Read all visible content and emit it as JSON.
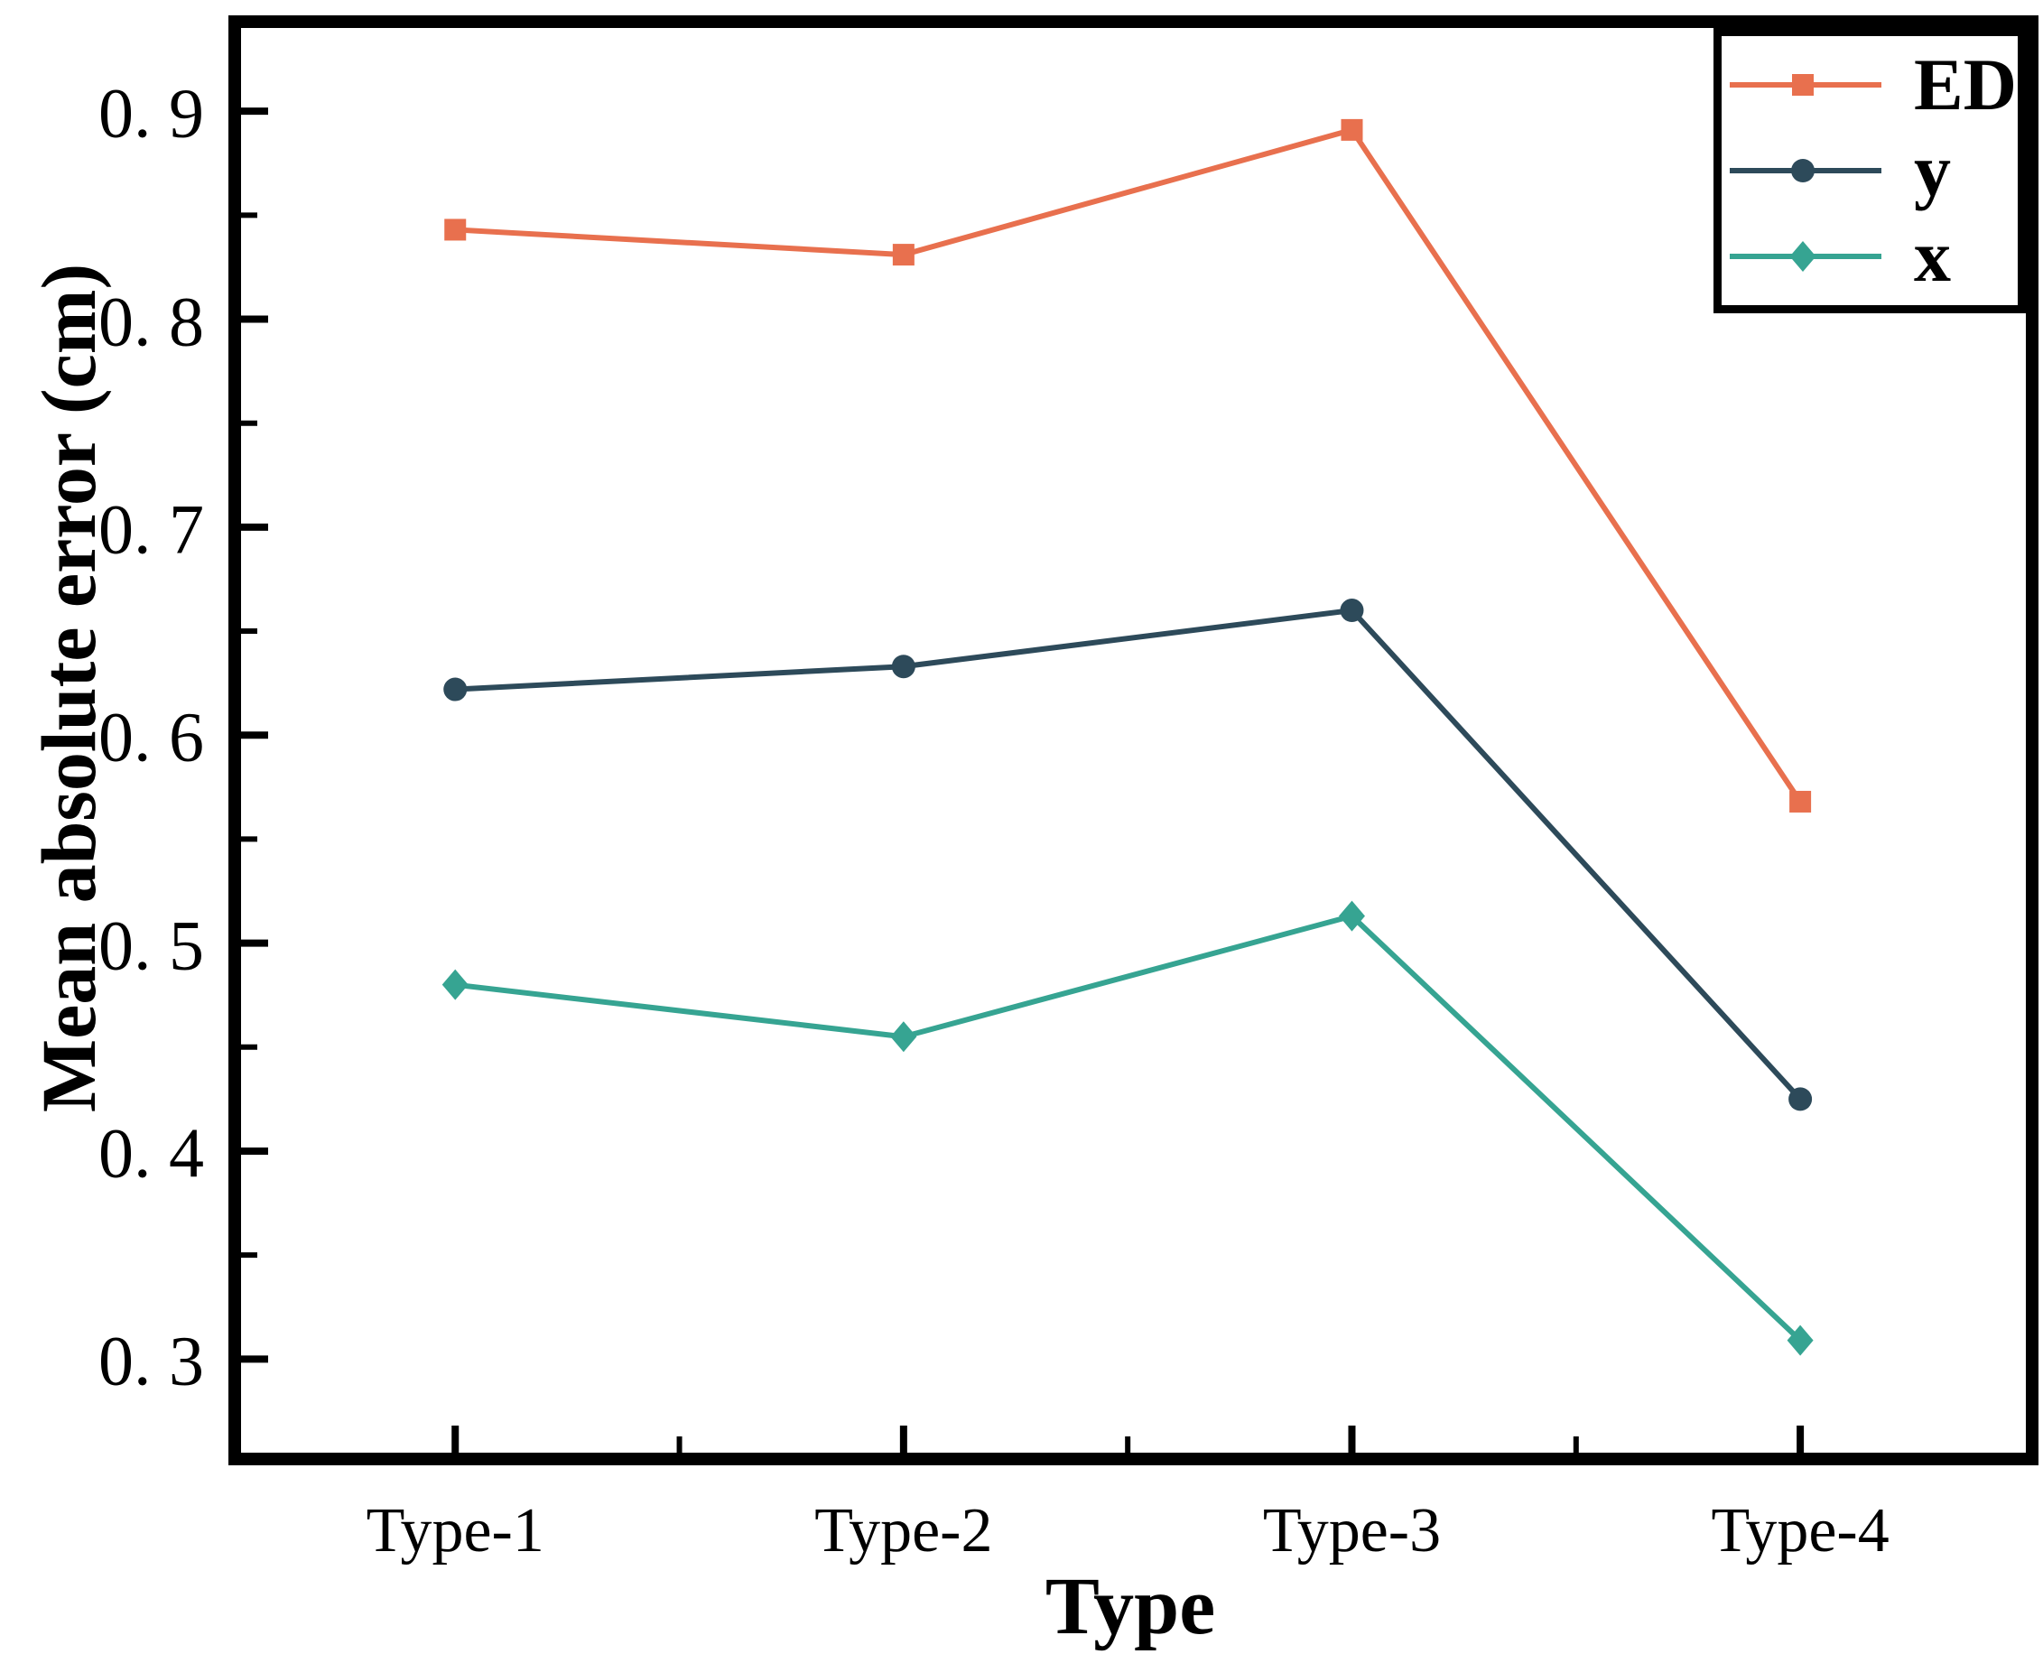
{
  "figure": {
    "background": "#FFFFFF"
  },
  "chart_data": {
    "type": "line",
    "title": "",
    "categories": [
      "Type-1",
      "Type-2",
      "Type-3",
      "Type-4"
    ],
    "series": [
      {
        "name": "ED",
        "marker": "square",
        "color": "#E8704E",
        "values": [
          0.843,
          0.831,
          0.891,
          0.568
        ]
      },
      {
        "name": "y",
        "marker": "circle",
        "color": "#2D4A5A",
        "values": [
          0.622,
          0.633,
          0.66,
          0.425
        ]
      },
      {
        "name": "x",
        "marker": "diamond",
        "color": "#36A492",
        "values": [
          0.48,
          0.455,
          0.513,
          0.309
        ]
      }
    ],
    "xlabel": "Type",
    "ylabel": "Mean absolute error (cm)",
    "ylim": [
      0.255,
      0.94
    ],
    "yticks": [
      0.9,
      0.8,
      0.7,
      0.6,
      0.5,
      0.4,
      0.3
    ],
    "ytick_labels": [
      "0. 9",
      "0. 8",
      "0. 7",
      "0. 6",
      "0. 5",
      "0. 4",
      "0. 3"
    ],
    "grid": false,
    "legend_position": "top-right",
    "axis_color": "#000000",
    "line_width": 6,
    "layout_hints": {
      "x_start_frac": 0.12,
      "x_step_frac": 0.2512
    }
  }
}
